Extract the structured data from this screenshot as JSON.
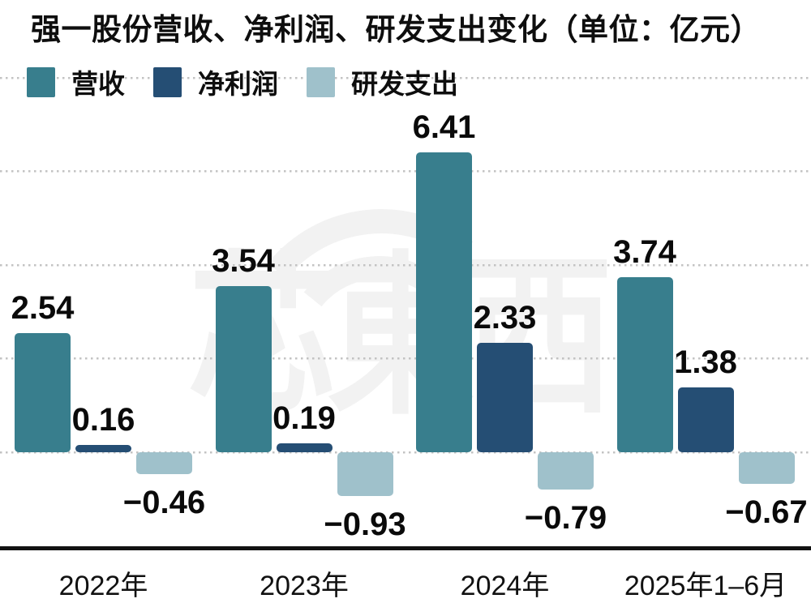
{
  "title": "强一股份营收、净利润、研发支出变化（单位：亿元）",
  "legend": {
    "items": [
      {
        "label": "营收",
        "color": "#387e8d"
      },
      {
        "label": "净利润",
        "color": "#254e74"
      },
      {
        "label": "研发支出",
        "color": "#9fc1cb"
      }
    ]
  },
  "watermark": {
    "text": "芯東西",
    "wifi_arcs_icon": "signal-arcs-icon"
  },
  "colors": {
    "grid_line": "#c3c3c3",
    "axis_line": "#121212",
    "label_text": "#0a0a0a"
  },
  "chart_data": {
    "type": "bar",
    "title": "强一股份营收、净利润、研发支出变化（单位：亿元）",
    "unit": "亿元",
    "categories": [
      "2022年",
      "2023年",
      "2024年",
      "2025年1–6月"
    ],
    "series": [
      {
        "name": "营收",
        "color": "#387e8d",
        "values": [
          2.54,
          3.54,
          6.41,
          3.74
        ],
        "labels": [
          "2.54",
          "3.54",
          "6.41",
          "3.74"
        ]
      },
      {
        "name": "净利润",
        "color": "#254e74",
        "values": [
          0.16,
          0.19,
          2.33,
          1.38
        ],
        "labels": [
          "0.16",
          "0.19",
          "2.33",
          "1.38"
        ]
      },
      {
        "name": "研发支出",
        "color": "#9fc1cb",
        "values": [
          -0.46,
          -0.93,
          -0.79,
          -0.67
        ],
        "labels": [
          "−0.46",
          "−0.93",
          "−0.79",
          "−0.67"
        ]
      }
    ],
    "ylim": [
      -2,
      8
    ],
    "gridline_values": [
      8,
      6,
      4,
      2,
      0
    ],
    "grid": "dotted-horizontal",
    "legend_position": "top-left",
    "xlabel": "",
    "ylabel": ""
  }
}
